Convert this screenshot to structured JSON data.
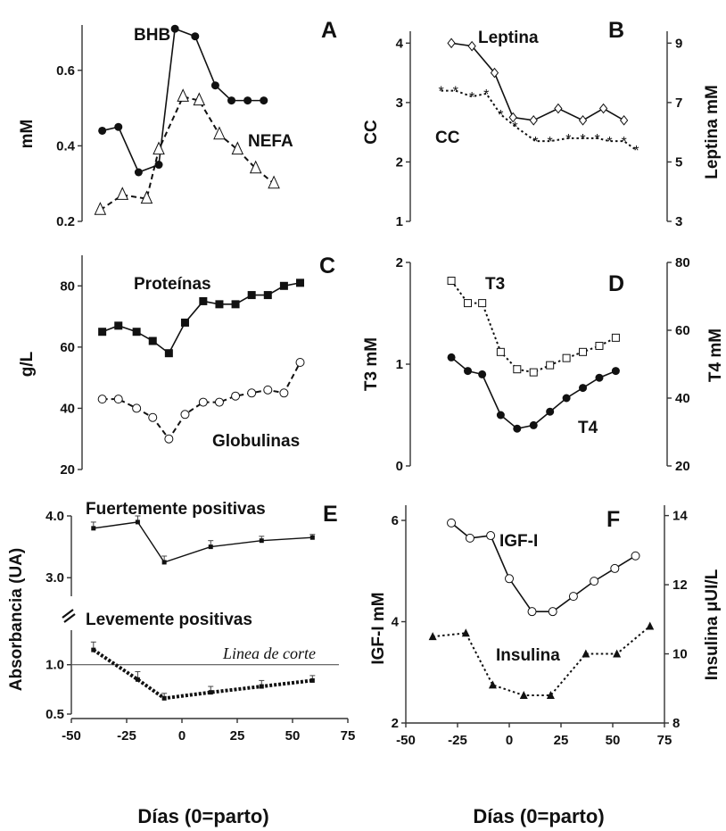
{
  "colors": {
    "axis": "#333333",
    "mark": "#111111",
    "open_fill": "#ffffff"
  },
  "chart_data": [
    {
      "panel": "A",
      "type": "line",
      "ylabel": "mM",
      "ylim": [
        0.2,
        0.72
      ],
      "yticks": [
        0.2,
        0.4,
        0.6
      ],
      "xlim": [
        -50,
        75
      ],
      "series": [
        {
          "name": "BHB",
          "marker": "filled-circle",
          "dash": "solid",
          "x": [
            -40,
            -32,
            -22,
            -12,
            -4,
            6,
            16,
            24,
            32,
            40
          ],
          "y": [
            0.44,
            0.45,
            0.33,
            0.35,
            0.71,
            0.69,
            0.56,
            0.52,
            0.52,
            0.52
          ]
        },
        {
          "name": "NEFA",
          "marker": "open-triangle",
          "dash": "dashed",
          "x": [
            -41,
            -30,
            -18,
            -12,
            0,
            8,
            18,
            27,
            36,
            45
          ],
          "y": [
            0.23,
            0.27,
            0.26,
            0.39,
            0.53,
            0.52,
            0.43,
            0.39,
            0.34,
            0.3
          ]
        }
      ]
    },
    {
      "panel": "B",
      "type": "line",
      "ylabel": "CC",
      "ylim": [
        1,
        4.2
      ],
      "yticks": [
        1,
        2,
        3,
        4
      ],
      "y2label": "Leptina mM",
      "y2lim": [
        3,
        9.4
      ],
      "y2ticks": [
        3,
        5,
        7,
        9
      ],
      "xlim": [
        -50,
        75
      ],
      "series": [
        {
          "name": "Leptina",
          "axis": "y2",
          "marker": "open-diamond",
          "dash": "solid",
          "x": [
            -30,
            -20,
            -9,
            0,
            10,
            22,
            34,
            44,
            54
          ],
          "y": [
            9.0,
            8.9,
            8.0,
            6.5,
            6.4,
            6.8,
            6.4,
            6.8,
            6.4
          ]
        },
        {
          "name": "CC",
          "axis": "y",
          "marker": "asterisk",
          "dash": "dotted",
          "x": [
            -35,
            -28,
            -20,
            -13,
            -6,
            1,
            11,
            18,
            27,
            34,
            41,
            47,
            54,
            60
          ],
          "y": [
            3.2,
            3.2,
            3.1,
            3.15,
            2.8,
            2.6,
            2.35,
            2.35,
            2.4,
            2.4,
            2.4,
            2.35,
            2.35,
            2.2
          ]
        }
      ]
    },
    {
      "panel": "C",
      "type": "line",
      "ylabel": "g/L",
      "ylim": [
        20,
        90
      ],
      "yticks": [
        20,
        40,
        60,
        80
      ],
      "xlim": [
        -50,
        75
      ],
      "series": [
        {
          "name": "Proteínas",
          "marker": "filled-square",
          "dash": "solid",
          "x": [
            -40,
            -32,
            -23,
            -15,
            -7,
            1,
            10,
            18,
            26,
            34,
            42,
            50,
            58
          ],
          "y": [
            65,
            67,
            65,
            62,
            58,
            68,
            75,
            74,
            74,
            77,
            77,
            80,
            81
          ]
        },
        {
          "name": "Globulinas",
          "marker": "open-circle",
          "dash": "dashed",
          "x": [
            -40,
            -32,
            -23,
            -15,
            -7,
            1,
            10,
            18,
            26,
            34,
            42,
            50,
            58
          ],
          "y": [
            43,
            43,
            40,
            37,
            30,
            38,
            42,
            42,
            44,
            45,
            46,
            45,
            55
          ]
        }
      ]
    },
    {
      "panel": "D",
      "type": "line",
      "ylabel": "T3 mM",
      "ylim": [
        0,
        2
      ],
      "yticks": [
        0,
        1,
        2
      ],
      "y2label": "T4 mM",
      "y2lim": [
        20,
        80
      ],
      "y2ticks": [
        20,
        40,
        60,
        80
      ],
      "xlim": [
        -50,
        75
      ],
      "series": [
        {
          "name": "T3",
          "axis": "y",
          "marker": "open-square",
          "dash": "dotted",
          "x": [
            -30,
            -22,
            -15,
            -6,
            2,
            10,
            18,
            26,
            34,
            42,
            50
          ],
          "y": [
            1.82,
            1.6,
            1.6,
            1.12,
            0.95,
            0.92,
            0.99,
            1.06,
            1.12,
            1.18,
            1.26
          ]
        },
        {
          "name": "T4",
          "axis": "y2",
          "marker": "filled-circle",
          "dash": "solid",
          "x": [
            -30,
            -22,
            -15,
            -6,
            2,
            10,
            18,
            26,
            34,
            42,
            50
          ],
          "y": [
            52,
            48,
            47,
            35,
            31,
            32,
            36,
            40,
            43,
            46,
            48
          ]
        }
      ]
    },
    {
      "panel": "E",
      "type": "line",
      "ylabel": "Absorbancia (UA)",
      "xlim": [
        -50,
        75
      ],
      "xticks": [
        -50,
        -25,
        0,
        25,
        50,
        75
      ],
      "xlabel": "Días (0=parto)",
      "broken_axis": true,
      "upper": {
        "title": "Fuertemente positivas",
        "ylim": [
          2.7,
          4.0
        ],
        "yticks": [
          3.0,
          4.0
        ],
        "x": [
          -40,
          -20,
          -8,
          13,
          36,
          59
        ],
        "y": [
          3.8,
          3.9,
          3.25,
          3.5,
          3.6,
          3.65
        ],
        "err": [
          0.1,
          0.1,
          0.1,
          0.1,
          0.07,
          0.05
        ]
      },
      "lower": {
        "title": "Levemente positivas",
        "ylim": [
          0.5,
          1.35
        ],
        "yticks": [
          0.5,
          1.0
        ],
        "x": [
          -40,
          -20,
          -8,
          13,
          36,
          59
        ],
        "y": [
          1.15,
          0.85,
          0.66,
          0.72,
          0.78,
          0.84
        ],
        "err": [
          0.08,
          0.08,
          0.05,
          0.06,
          0.06,
          0.05
        ]
      },
      "cutoff": {
        "label": "Linea de corte",
        "y": 1.0
      }
    },
    {
      "panel": "F",
      "type": "line",
      "ylabel": "IGF-I mM",
      "ylim": [
        2,
        6.3
      ],
      "yticks": [
        2,
        4,
        6
      ],
      "y2label": "Insulina μUI/L",
      "y2lim": [
        8,
        14.3
      ],
      "y2ticks": [
        8,
        10,
        12,
        14
      ],
      "xlim": [
        -50,
        75
      ],
      "xticks": [
        -50,
        -25,
        0,
        25,
        50,
        75
      ],
      "xlabel": "Días (0=parto)",
      "series": [
        {
          "name": "IGF-I",
          "axis": "y",
          "marker": "open-circle",
          "dash": "solid",
          "x": [
            -28,
            -19,
            -9,
            0,
            11,
            21,
            31,
            41,
            51,
            61
          ],
          "y": [
            5.95,
            5.65,
            5.7,
            4.85,
            4.2,
            4.2,
            4.5,
            4.8,
            5.05,
            5.3
          ]
        },
        {
          "name": "Insulina",
          "axis": "y2",
          "marker": "filled-triangle",
          "dash": "dotted",
          "x": [
            -37,
            -21,
            -8,
            7,
            20,
            37,
            52,
            68
          ],
          "y": [
            10.5,
            10.6,
            9.1,
            8.8,
            8.8,
            10.0,
            10.0,
            10.8
          ]
        }
      ]
    }
  ]
}
